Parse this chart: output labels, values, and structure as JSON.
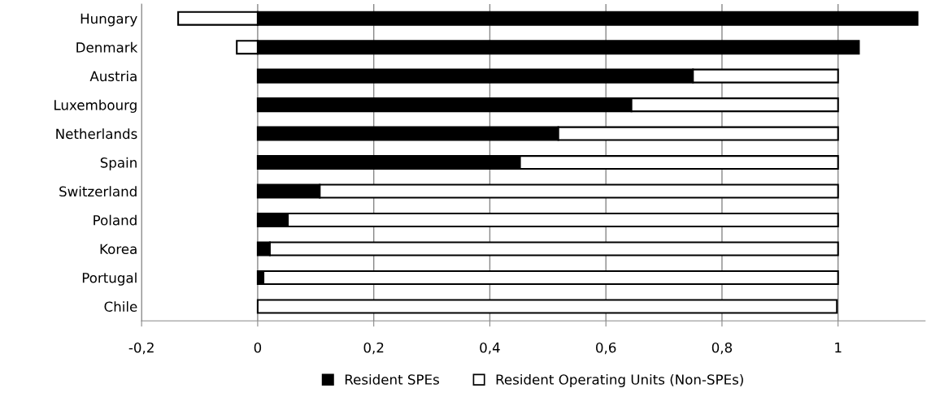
{
  "chart_data": {
    "type": "bar",
    "orientation": "horizontal",
    "stacked": true,
    "categories": [
      "Hungary",
      "Denmark",
      "Austria",
      "Luxembourg",
      "Netherlands",
      "Spain",
      "Switzerland",
      "Poland",
      "Korea",
      "Portugal",
      "Chile"
    ],
    "series": [
      {
        "name": "Resident SPEs",
        "color": "#000000",
        "values": [
          1.137,
          1.036,
          0.75,
          0.644,
          0.518,
          0.452,
          0.107,
          0.052,
          0.021,
          0.01,
          null
        ]
      },
      {
        "name": "Resident Operating Units (Non-SPEs)",
        "color": "#ffffff",
        "values": [
          -0.137,
          -0.036,
          0.25,
          0.356,
          0.482,
          0.548,
          0.893,
          0.948,
          0.979,
          0.99,
          0.998
        ]
      }
    ],
    "xlim": [
      -0.2,
      1.15
    ],
    "xticks": [
      {
        "value": -0.2,
        "label": "-0,2"
      },
      0,
      {
        "value": 0.2,
        "label": "0,2"
      },
      {
        "value": 0.4,
        "label": "0,4"
      },
      {
        "value": 0.6,
        "label": "0,6"
      },
      {
        "value": 0.8,
        "label": "0,8"
      },
      1
    ],
    "grid": "x",
    "legend": "bottom"
  }
}
